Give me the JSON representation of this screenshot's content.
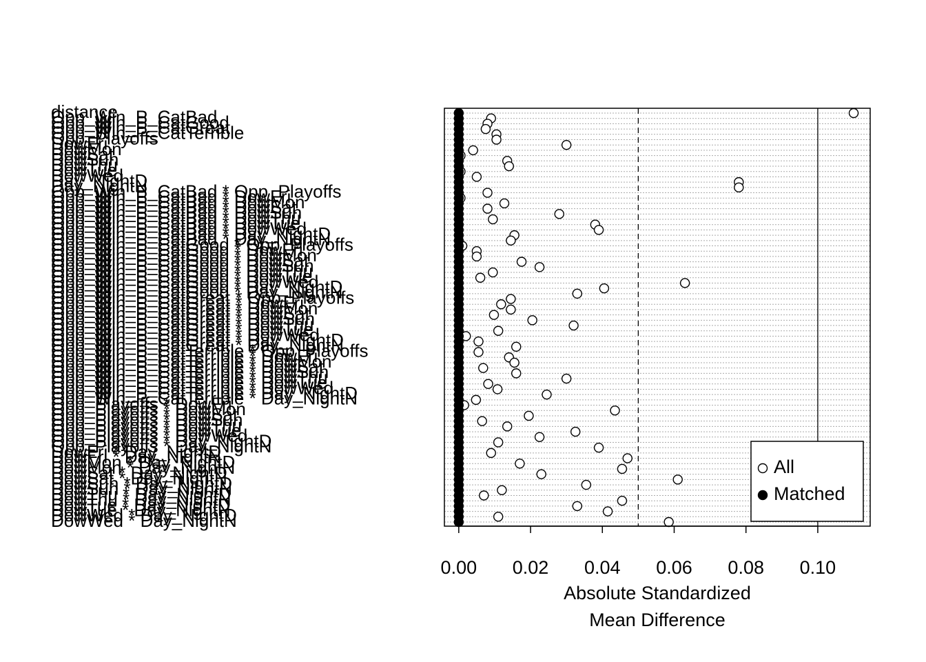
{
  "chart_data": {
    "type": "dot",
    "xlabel": [
      "Absolute Standardized",
      "Mean Difference"
    ],
    "categories": [
      "distance",
      "Opp_Win_P_CatBad",
      "Opp_Win_P_CatGood",
      "Opp_Win_P_CatGreat",
      "Opp_Win_P_CatTerrible",
      "Opp_Playoffs",
      "DowFri",
      "DowMon",
      "DowSat",
      "DowSun",
      "DowThu",
      "DowTue",
      "DowWed",
      "Day_NightD",
      "Day_NightN",
      "Opp_Win_P_CatBad * Opp_Playoffs",
      "Opp_Win_P_CatBad * DowFri",
      "Opp_Win_P_CatBad * DowMon",
      "Opp_Win_P_CatBad * DowSat",
      "Opp_Win_P_CatBad * DowSun",
      "Opp_Win_P_CatBad * DowThu",
      "Opp_Win_P_CatBad * DowTue",
      "Opp_Win_P_CatBad * DowWed",
      "Opp_Win_P_CatBad * Day_NightD",
      "Opp_Win_P_CatBad * Day_NightN",
      "Opp_Win_P_CatGood * Opp_Playoffs",
      "Opp_Win_P_CatGood * DowFri",
      "Opp_Win_P_CatGood * DowMon",
      "Opp_Win_P_CatGood * DowSat",
      "Opp_Win_P_CatGood * DowSun",
      "Opp_Win_P_CatGood * DowThu",
      "Opp_Win_P_CatGood * DowTue",
      "Opp_Win_P_CatGood * DowWed",
      "Opp_Win_P_CatGood * Day_NightD",
      "Opp_Win_P_CatGood * Day_NightN",
      "Opp_Win_P_CatGreat * Opp_Playoffs",
      "Opp_Win_P_CatGreat * DowFri",
      "Opp_Win_P_CatGreat * DowMon",
      "Opp_Win_P_CatGreat * DowSat",
      "Opp_Win_P_CatGreat * DowSun",
      "Opp_Win_P_CatGreat * DowThu",
      "Opp_Win_P_CatGreat * DowTue",
      "Opp_Win_P_CatGreat * DowWed",
      "Opp_Win_P_CatGreat * Day_NightD",
      "Opp_Win_P_CatGreat * Day_NightN",
      "Opp_Win_P_CatTerrible * Opp_Playoffs",
      "Opp_Win_P_CatTerrible * DowFri",
      "Opp_Win_P_CatTerrible * DowMon",
      "Opp_Win_P_CatTerrible * DowSat",
      "Opp_Win_P_CatTerrible * DowSun",
      "Opp_Win_P_CatTerrible * DowThu",
      "Opp_Win_P_CatTerrible * DowTue",
      "Opp_Win_P_CatTerrible * DowWed",
      "Opp_Win_P_CatTerrible * Day_NightD",
      "Opp_Win_P_CatTerrible * Day_NightN",
      "Opp_Playoffs * DowFri",
      "Opp_Playoffs * DowMon",
      "Opp_Playoffs * DowSat",
      "Opp_Playoffs * DowSun",
      "Opp_Playoffs * DowThu",
      "Opp_Playoffs * DowTue",
      "Opp_Playoffs * DowWed",
      "Opp_Playoffs * Day_NightD",
      "Opp_Playoffs * Day_NightN",
      "DowFri * Day_NightD",
      "DowFri * Day_NightN",
      "DowMon * Day_NightD",
      "DowMon * Day_NightN",
      "DowSat * Day_NightD",
      "DowSat * Day_NightN",
      "DowSun * Day_NightD",
      "DowSun * Day_NightN",
      "DowThu * Day_NightD",
      "DowThu * Day_NightN",
      "DowTue * Day_NightD",
      "DowTue * Day_NightN",
      "DowWed * Day_NightD",
      "DowWed * Day_NightN"
    ],
    "series": [
      {
        "name": "All",
        "color": "#000000",
        "filled": false,
        "values": [
          0.11,
          0.009,
          0.008,
          0.0075,
          0.0105,
          0.0105,
          0.03,
          0.004,
          0.0005,
          0.0135,
          0.014,
          0.0005,
          0.005,
          0.078,
          0.078,
          0.008,
          0.0005,
          0.0127,
          0.008,
          0.028,
          0.0095,
          0.038,
          0.039,
          0.0155,
          0.0145,
          0.001,
          0.005,
          0.005,
          0.0175,
          0.0225,
          0.0095,
          0.006,
          0.063,
          0.0405,
          0.033,
          0.0145,
          0.0118,
          0.0145,
          0.0098,
          0.0205,
          0.032,
          0.011,
          0.002,
          0.0055,
          0.016,
          0.0055,
          0.014,
          0.0155,
          0.0068,
          0.016,
          0.03,
          0.0082,
          0.0108,
          0.0245,
          0.0048,
          0.0015,
          0.0435,
          0.0195,
          0.0065,
          0.0135,
          0.0325,
          0.0225,
          0.011,
          0.039,
          0.009,
          0.047,
          0.017,
          0.0455,
          0.023,
          0.061,
          0.0355,
          0.012,
          0.007,
          0.0455,
          0.033,
          0.0415,
          0.011,
          0.0585
        ]
      },
      {
        "name": "Matched",
        "color": "#000000",
        "filled": true,
        "values": [
          0,
          0,
          0,
          0,
          0,
          0,
          0,
          0,
          0,
          0,
          0,
          0,
          0,
          0,
          0,
          0,
          0,
          0,
          0,
          0,
          0,
          0,
          0,
          0,
          0,
          0,
          0,
          0,
          0,
          0,
          0,
          0,
          0,
          0,
          0,
          0,
          0,
          0,
          0,
          0,
          0,
          0,
          0,
          0,
          0,
          0,
          0,
          0,
          0,
          0,
          0,
          0,
          0,
          0,
          0,
          0,
          0,
          0,
          0,
          0,
          0,
          0,
          0,
          0,
          0,
          0,
          0,
          0,
          0,
          0,
          0,
          0,
          0,
          0,
          0,
          0,
          0,
          0
        ]
      }
    ],
    "xlim": [
      -0.004,
      0.1146
    ],
    "xticks": [
      {
        "value": 0,
        "label": "0.00"
      },
      {
        "value": 0.02,
        "label": "0.02"
      },
      {
        "value": 0.04,
        "label": "0.04"
      },
      {
        "value": 0.06,
        "label": "0.06"
      },
      {
        "value": 0.08,
        "label": "0.08"
      },
      {
        "value": 0.1,
        "label": "0.10"
      }
    ],
    "reference_lines": [
      {
        "value": 0.05,
        "style": "dashed"
      },
      {
        "value": 0.1,
        "style": "solid"
      }
    ],
    "grid": true,
    "legend": "bottom-right"
  }
}
